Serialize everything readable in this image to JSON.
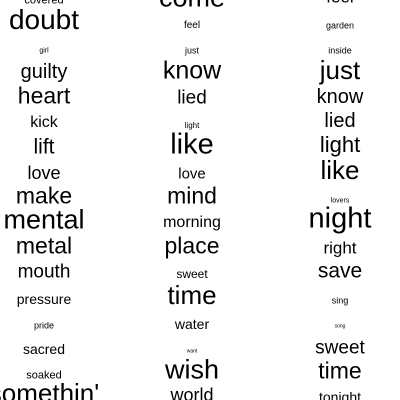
{
  "words": [
    {
      "text": "covered"
    },
    {
      "text": "doubt"
    },
    {
      "text": "girl"
    },
    {
      "text": "guilty"
    },
    {
      "text": "heart"
    },
    {
      "text": "kick"
    },
    {
      "text": "lift"
    },
    {
      "text": "love"
    },
    {
      "text": "make"
    },
    {
      "text": "mental"
    },
    {
      "text": "metal"
    },
    {
      "text": "mouth"
    },
    {
      "text": "pressure"
    },
    {
      "text": "pride"
    },
    {
      "text": "sacred"
    },
    {
      "text": "soaked"
    },
    {
      "text": "somethin'"
    },
    {
      "text": "come"
    },
    {
      "text": "feel"
    },
    {
      "text": "just"
    },
    {
      "text": "know"
    },
    {
      "text": "lied"
    },
    {
      "text": "light"
    },
    {
      "text": "like"
    },
    {
      "text": "love"
    },
    {
      "text": "mind"
    },
    {
      "text": "morning"
    },
    {
      "text": "place"
    },
    {
      "text": "sweet"
    },
    {
      "text": "time"
    },
    {
      "text": "water"
    },
    {
      "text": "want"
    },
    {
      "text": "wish"
    },
    {
      "text": "world"
    },
    {
      "text": "feel"
    },
    {
      "text": "garden"
    },
    {
      "text": "inside"
    },
    {
      "text": "just"
    },
    {
      "text": "know"
    },
    {
      "text": "lied"
    },
    {
      "text": "light"
    },
    {
      "text": "like"
    },
    {
      "text": "lovers"
    },
    {
      "text": "night"
    },
    {
      "text": "right"
    },
    {
      "text": "save"
    },
    {
      "text": "sing"
    },
    {
      "text": "song"
    },
    {
      "text": "sweet"
    },
    {
      "text": "time"
    },
    {
      "text": "tonight"
    }
  ]
}
